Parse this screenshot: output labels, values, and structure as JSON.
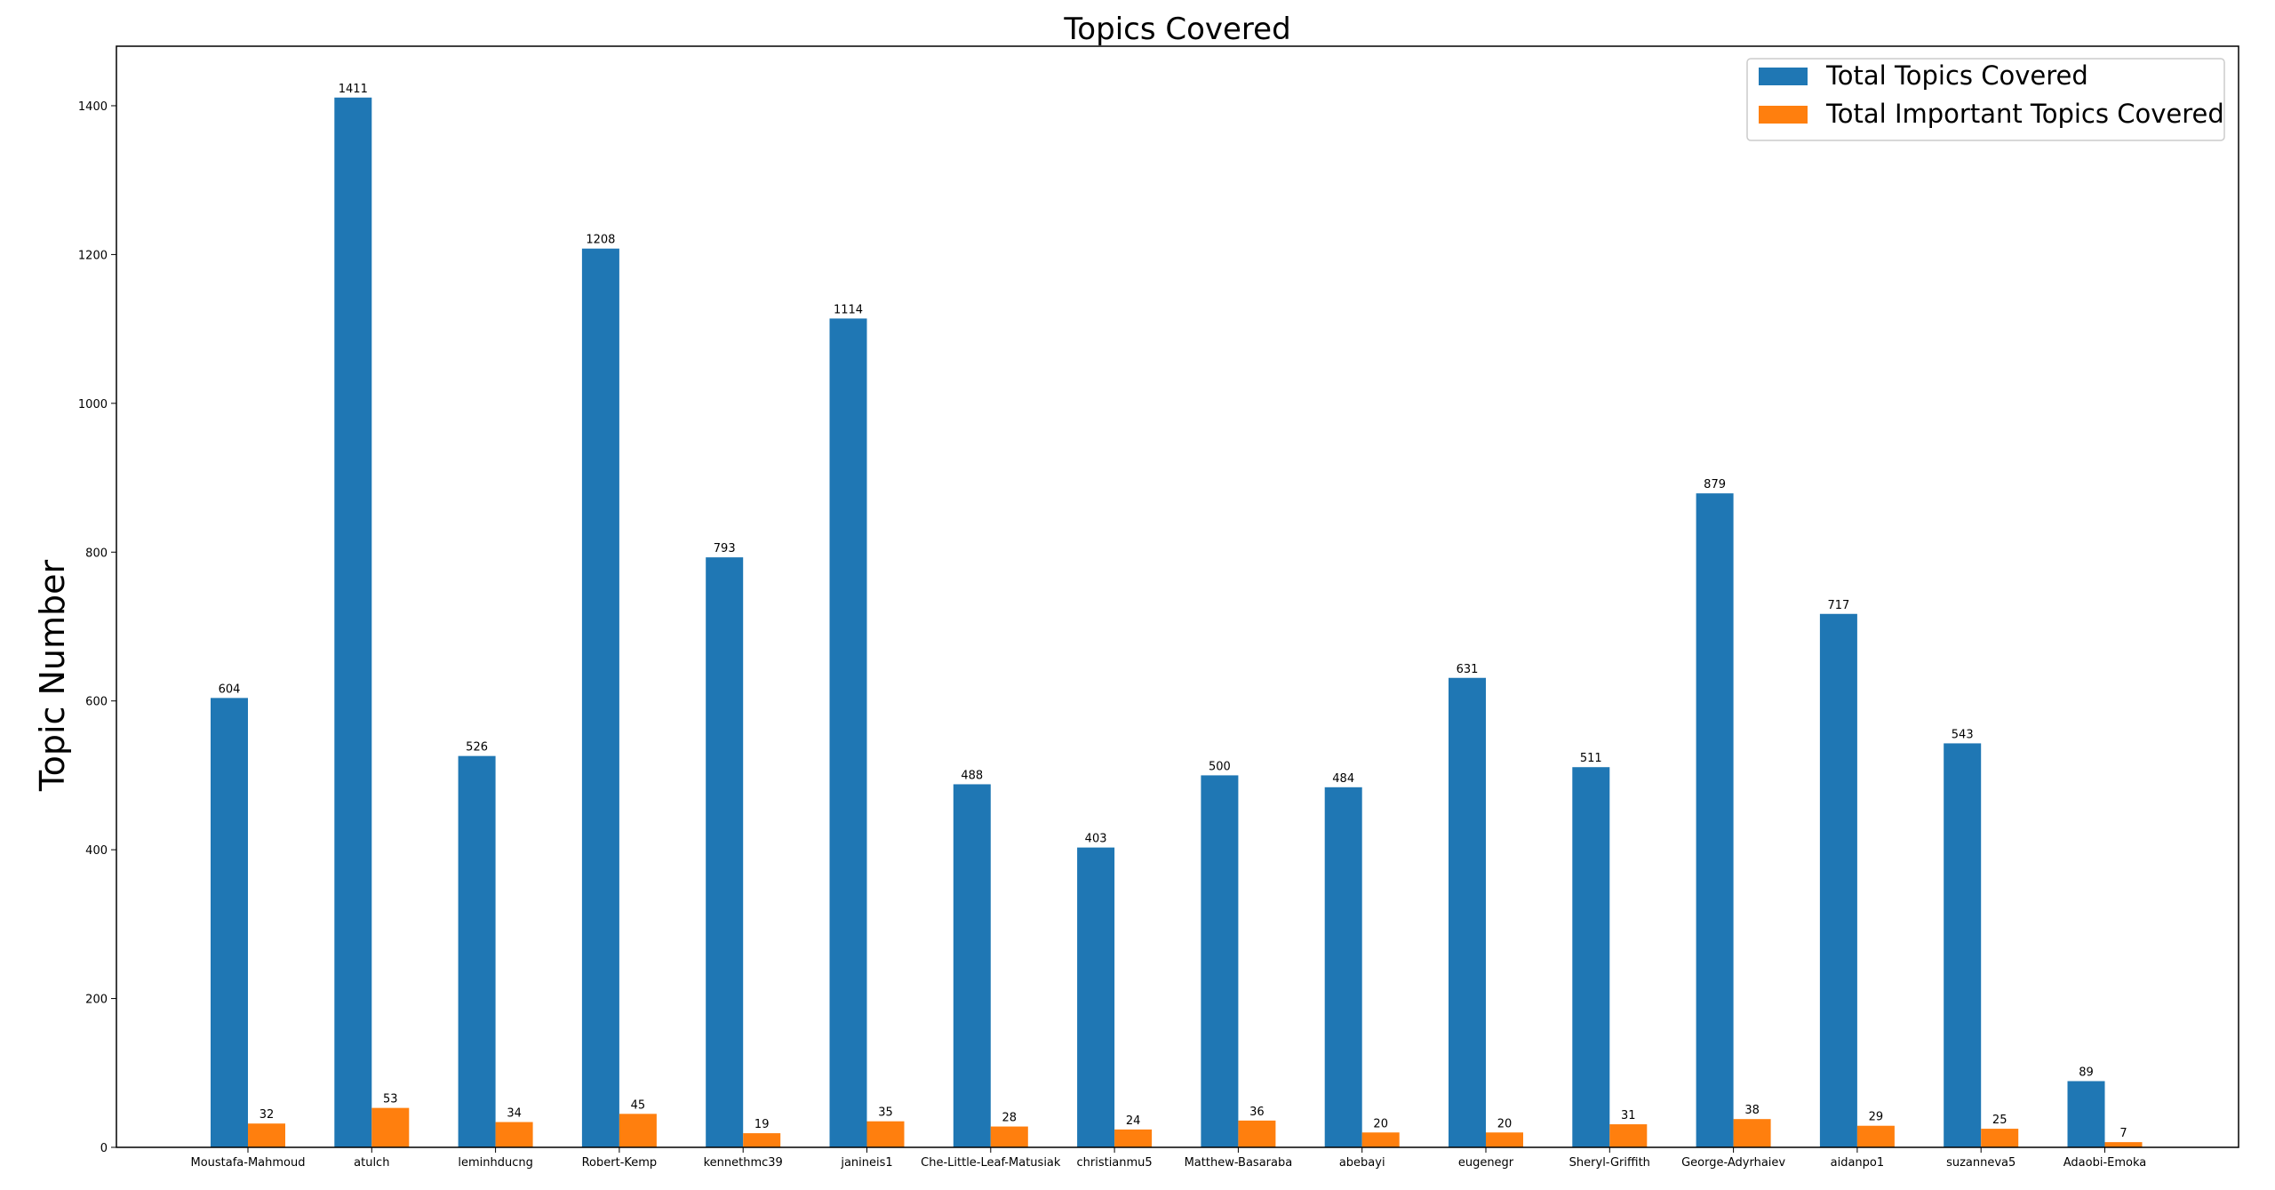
{
  "chart_data": {
    "type": "bar",
    "title": "Topics Covered",
    "xlabel": "",
    "ylabel": "Topic Number",
    "categories": [
      "Moustafa-Mahmoud",
      "atulch",
      "leminhducng",
      "Robert-Kemp",
      "kennethmc39",
      "janineis1",
      "Che-Little-Leaf-Matusiak",
      "christianmu5",
      "Matthew-Basaraba",
      "abebayi",
      "eugenegr",
      "Sheryl-Griffith",
      "George-Adyrhaiev",
      "aidanpo1",
      "suzanneva5",
      "Adaobi-Emoka"
    ],
    "series": [
      {
        "name": "Total Topics Covered",
        "color": "#1f77b4",
        "values": [
          604,
          1411,
          526,
          1208,
          793,
          1114,
          488,
          403,
          500,
          484,
          631,
          511,
          879,
          717,
          543,
          89
        ]
      },
      {
        "name": "Total Important Topics Covered",
        "color": "#ff7f0e",
        "values": [
          32,
          53,
          34,
          45,
          19,
          35,
          28,
          24,
          36,
          20,
          20,
          31,
          38,
          29,
          25,
          7
        ]
      }
    ],
    "ylim": [
      0,
      1480
    ],
    "yticks": [
      0,
      200,
      400,
      600,
      800,
      1000,
      1200,
      1400
    ],
    "grid": false,
    "legend_position": "top-right"
  }
}
